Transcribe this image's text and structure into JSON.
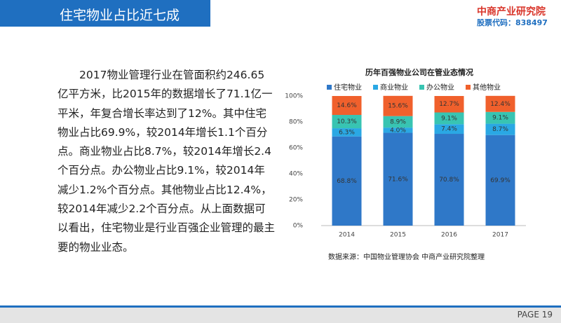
{
  "header": {
    "title": "住宅物业占比近七成",
    "logo_name": "中商产业研究院",
    "stock_code": "股票代码：838497"
  },
  "body": {
    "paragraph": "2017物业管理行业在管面积约246.65亿平方米，比2015年的数据增长了71.1亿一平米，年复合增长率达到了12%。其中住宅物业占比69.9%，较2014年增长1.1个百分点。商业物业占比8.7%，较2014年增长2.4个百分点。办公物业占比9.1%，较2014年减少1.2%个百分点。其他物业占比12.4%，较2014年减少2.2个百分点。从上面数据可以看出，住宅物业是行业百强企业管理的最主要的物业业态。"
  },
  "chart_data": {
    "type": "stacked_bar",
    "title": "历年百强物业公司在管业态情况",
    "categories": [
      "2014",
      "2015",
      "2016",
      "2017"
    ],
    "series": [
      {
        "name": "住宅物业",
        "color": "#2f78c8",
        "values": [
          68.8,
          71.6,
          70.8,
          69.9
        ],
        "value_labels": [
          "68.8%",
          "71.6%",
          "70.8%",
          "69.9%"
        ]
      },
      {
        "name": "商业物业",
        "color": "#2aa8e4",
        "values": [
          6.3,
          4.0,
          7.4,
          8.7
        ],
        "value_labels": [
          "6.3%",
          "4.0%",
          "7.4%",
          "8.7%"
        ]
      },
      {
        "name": "办公物业",
        "color": "#38c4b2",
        "values": [
          10.3,
          8.9,
          9.1,
          9.1
        ],
        "value_labels": [
          "10.3%",
          "8.9%",
          "9.1%",
          "9.1%"
        ]
      },
      {
        "name": "其他物业",
        "color": "#f0602c",
        "values": [
          14.6,
          15.6,
          12.7,
          12.4
        ],
        "value_labels": [
          "14.6%",
          "15.6%",
          "12.7%",
          "12.4%"
        ]
      }
    ],
    "ylim": [
      0,
      100
    ],
    "yticks": [
      {
        "value": 0,
        "label": "0%"
      },
      {
        "value": 20,
        "label": "20%"
      },
      {
        "value": 40,
        "label": "40%"
      },
      {
        "value": 60,
        "label": "60%"
      },
      {
        "value": 80,
        "label": "80%"
      },
      {
        "value": 100,
        "label": "100%"
      }
    ],
    "grid": false,
    "legend": "top",
    "source": "数据来源：中国物业管理协会 中商产业研究院整理"
  },
  "footer": {
    "page": "PAGE 19"
  }
}
